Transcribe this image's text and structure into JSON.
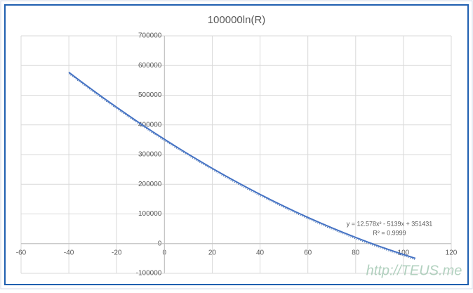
{
  "chart_data": {
    "type": "scatter",
    "title": "100000ln(R)",
    "x": [
      -40,
      -35,
      -30,
      -25,
      -20,
      -15,
      -10,
      -5,
      0,
      5,
      10,
      15,
      20,
      25,
      30,
      35,
      40,
      45,
      50,
      55,
      60,
      65,
      70,
      75,
      80,
      85,
      90,
      95,
      100,
      105
    ],
    "series": [
      {
        "color": "#4472c4",
        "values": [
          577116,
          546704,
          516921,
          487767,
          459242,
          431346,
          404079,
          377440,
          351431,
          326050,
          301299,
          277176,
          253682,
          230817,
          208581,
          186974,
          165996,
          145646,
          125926,
          106835,
          88372,
          70538,
          53333,
          36757,
          20810,
          5492,
          -9197,
          -23258,
          -36689,
          -49492
        ]
      }
    ],
    "xlim": [
      -60,
      120
    ],
    "xticks": [
      -60,
      -40,
      -20,
      0,
      20,
      40,
      60,
      80,
      100,
      120
    ],
    "ylim": [
      -100000,
      700000
    ],
    "yticks": [
      -100000,
      0,
      100000,
      200000,
      300000,
      400000,
      500000,
      600000,
      700000
    ],
    "grid": true,
    "annotations": [
      "y = 12.578x² - 5139x + 351431",
      "R² = 0.9999"
    ],
    "watermark": "http://TEUS.me"
  }
}
